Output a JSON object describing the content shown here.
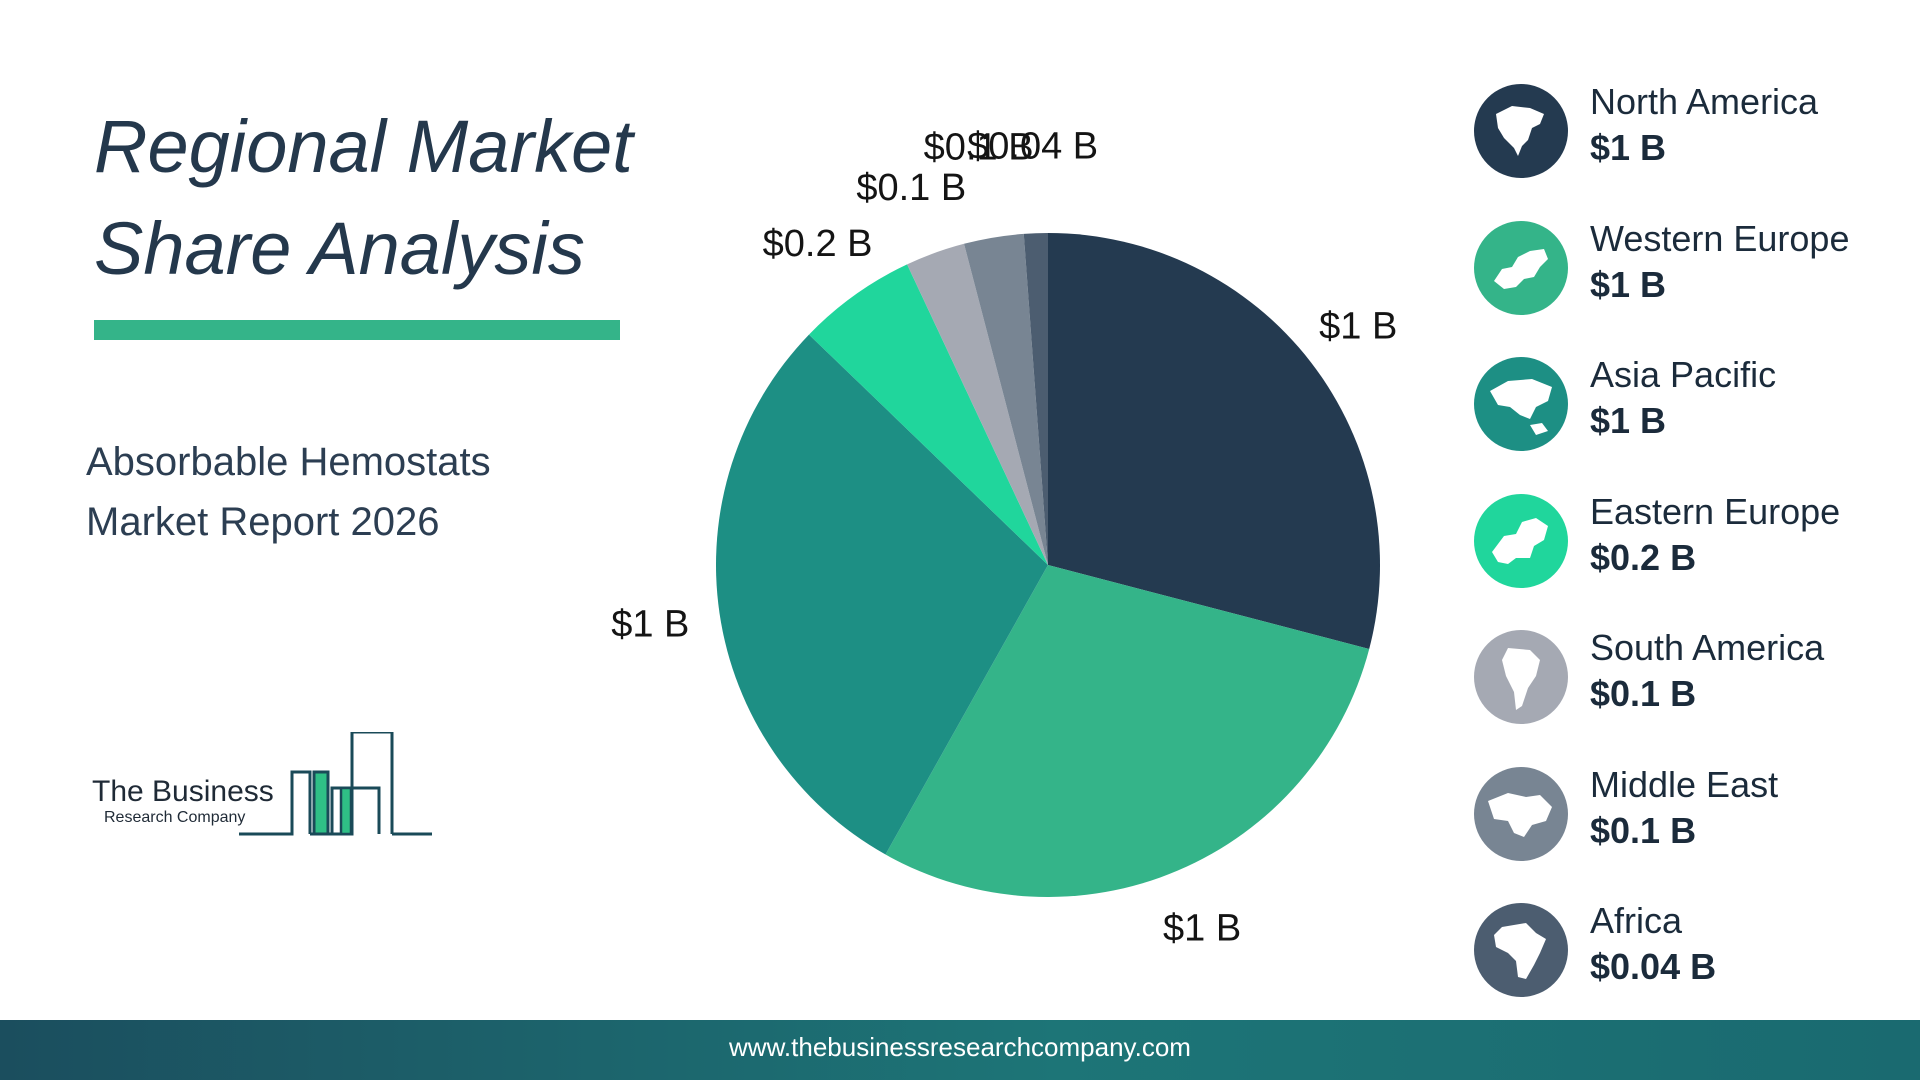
{
  "header": {
    "title_line1": "Regional Market",
    "title_line2": "Share Analysis",
    "subtitle_line1": "Absorbable Hemostats",
    "subtitle_line2": "Market Report 2026"
  },
  "logo": {
    "line1": "The Business",
    "line2": "Research Company"
  },
  "colors": {
    "accent": "#34b489",
    "title": "#24384c",
    "footer": "#1d6e73"
  },
  "chart_data": {
    "type": "pie",
    "title": "",
    "slices": [
      {
        "name": "North America",
        "value": 1,
        "label": "$1 B",
        "color": "#243a50",
        "icon": "north-america-map-icon"
      },
      {
        "name": "Western Europe",
        "value": 1,
        "label": "$1 B",
        "color": "#34b489",
        "icon": "western-europe-map-icon"
      },
      {
        "name": "Asia Pacific",
        "value": 1,
        "label": "$1 B",
        "color": "#1d8f84",
        "icon": "asia-pacific-map-icon"
      },
      {
        "name": "Eastern Europe",
        "value": 0.2,
        "label": "$0.2 B",
        "color": "#20d69c",
        "icon": "eastern-europe-map-icon"
      },
      {
        "name": "South America",
        "value": 0.1,
        "label": "$0.1 B",
        "color": "#a5a9b3",
        "icon": "south-america-map-icon"
      },
      {
        "name": "Middle East",
        "value": 0.1,
        "label": "$0.1 B",
        "color": "#788593",
        "icon": "middle-east-map-icon"
      },
      {
        "name": "Africa",
        "value": 0.04,
        "label": "$0.04 B",
        "color": "#4c5d70",
        "icon": "africa-map-icon"
      }
    ],
    "start_angle_deg": 0,
    "direction": "clockwise",
    "legend_position": "right"
  },
  "footer": {
    "url": "www.thebusinessresearchcompany.com"
  }
}
